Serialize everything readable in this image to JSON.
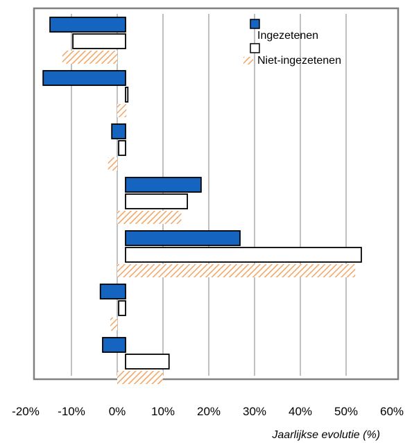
{
  "chart_data": {
    "type": "bar",
    "orientation": "horizontal",
    "title": "",
    "xlabel": "Jaarlijkse evolutie (%)",
    "ylabel": "",
    "xlim": [
      -20,
      60
    ],
    "xticks": [
      -20,
      -10,
      0,
      10,
      20,
      30,
      40,
      50,
      60
    ],
    "xtick_labels": [
      "-20%",
      "-10%",
      "0%",
      "10%",
      "20%",
      "30%",
      "40%",
      "50%",
      "60%"
    ],
    "grid": true,
    "legend_position": "top-right",
    "categories": [
      "",
      "",
      "",
      "",
      "",
      "",
      ""
    ],
    "series": [
      {
        "name": "Ingezetenen",
        "color": "#1565c0",
        "fill": "solid",
        "values": [
          -16.5,
          -18,
          -3,
          16.5,
          25,
          -5.5,
          -5
        ]
      },
      {
        "name": "Niet-ingezetenen",
        "color": "#ffffff",
        "fill": "outline",
        "values": [
          -11.5,
          0.5,
          -1.5,
          13.5,
          51.5,
          -1.5,
          9.5
        ]
      },
      {
        "name": "",
        "color": "#f4a460",
        "fill": "hatched",
        "values": [
          -12,
          2,
          -2,
          14,
          52,
          -1.5,
          10
        ]
      }
    ]
  }
}
